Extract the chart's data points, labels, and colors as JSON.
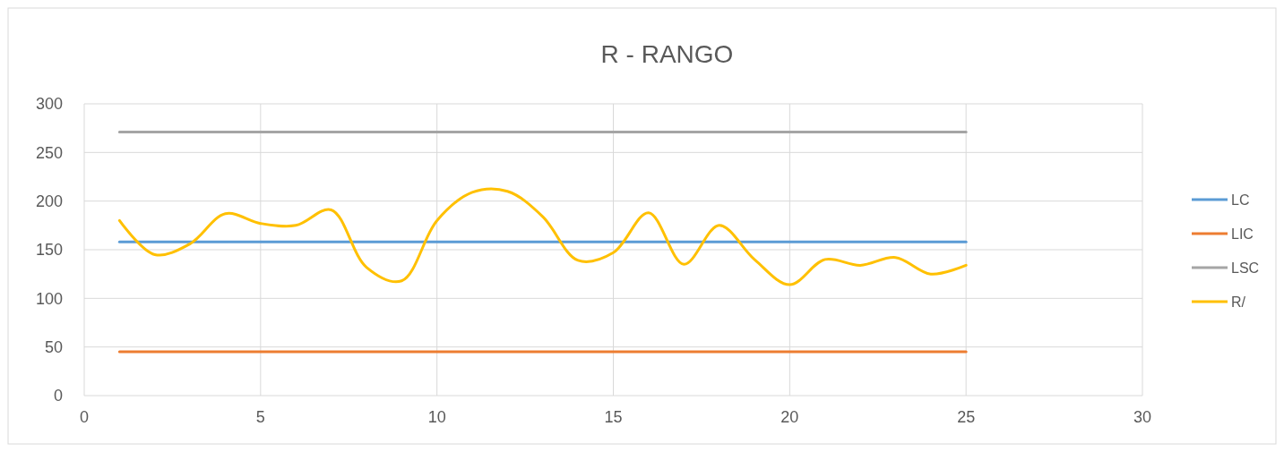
{
  "chart_data": {
    "type": "line",
    "title": "R - RANGO",
    "x": [
      1,
      2,
      3,
      4,
      5,
      6,
      7,
      8,
      9,
      10,
      11,
      12,
      13,
      14,
      15,
      16,
      17,
      18,
      19,
      20,
      21,
      22,
      23,
      24,
      25
    ],
    "series": [
      {
        "name": "LC",
        "color": "#5b9bd5",
        "values": [
          158,
          158,
          158,
          158,
          158,
          158,
          158,
          158,
          158,
          158,
          158,
          158,
          158,
          158,
          158,
          158,
          158,
          158,
          158,
          158,
          158,
          158,
          158,
          158,
          158
        ]
      },
      {
        "name": "LIC",
        "color": "#ed7d31",
        "values": [
          45,
          45,
          45,
          45,
          45,
          45,
          45,
          45,
          45,
          45,
          45,
          45,
          45,
          45,
          45,
          45,
          45,
          45,
          45,
          45,
          45,
          45,
          45,
          45,
          45
        ]
      },
      {
        "name": "LSC",
        "color": "#a5a5a5",
        "values": [
          271,
          271,
          271,
          271,
          271,
          271,
          271,
          271,
          271,
          271,
          271,
          271,
          271,
          271,
          271,
          271,
          271,
          271,
          271,
          271,
          271,
          271,
          271,
          271,
          271
        ]
      },
      {
        "name": "R/",
        "color": "#ffc000",
        "values": [
          180,
          145,
          156,
          187,
          177,
          175,
          191,
          132,
          118,
          180,
          209,
          210,
          184,
          139,
          147,
          188,
          135,
          175,
          140,
          114,
          140,
          134,
          142,
          125,
          134
        ]
      }
    ],
    "xlim": [
      0,
      30
    ],
    "xticks": [
      0,
      5,
      10,
      15,
      20,
      25,
      30
    ],
    "ylim": [
      0,
      300
    ],
    "yticks": [
      0,
      50,
      100,
      150,
      200,
      250,
      300
    ],
    "grid": true,
    "legend": "right",
    "marker": "none"
  }
}
